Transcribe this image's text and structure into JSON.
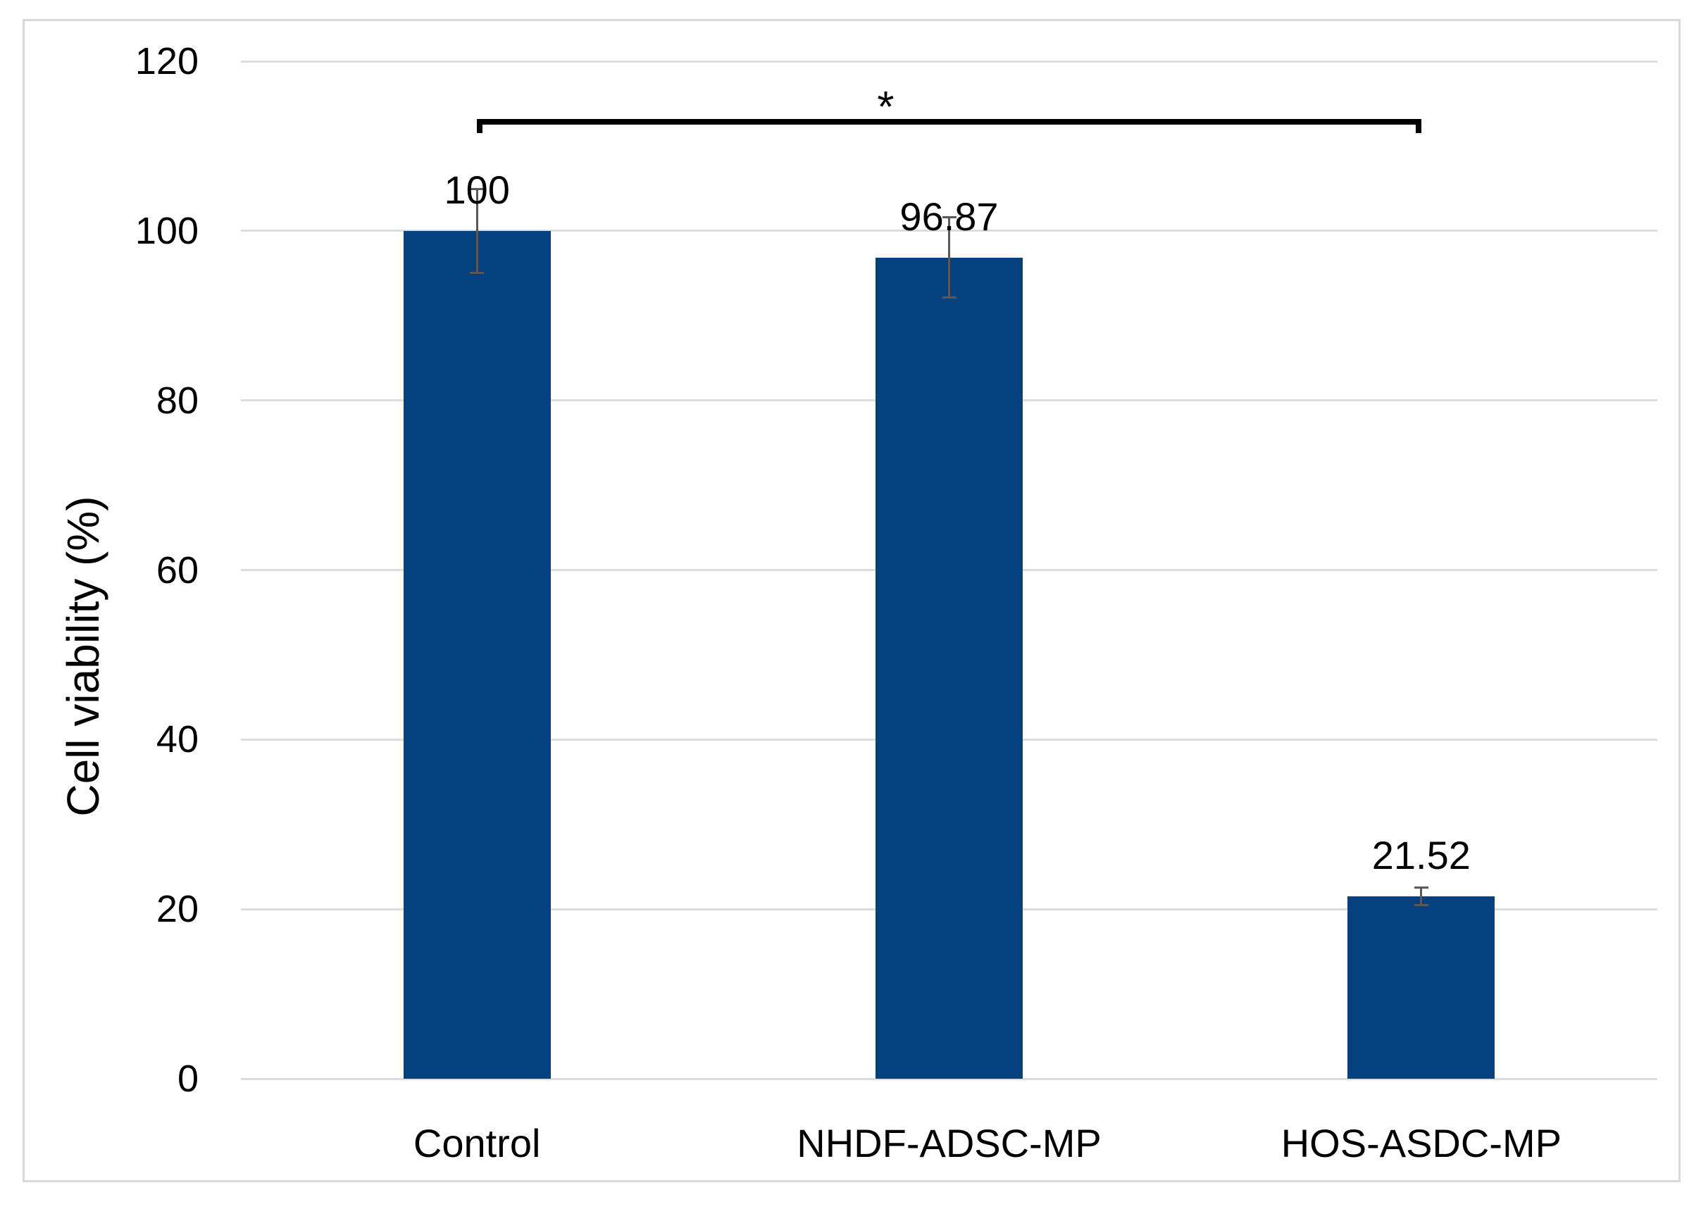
{
  "chart_data": {
    "type": "bar",
    "title": "",
    "xlabel": "",
    "ylabel": "Cell viability (%)",
    "categories": [
      "Control",
      "NHDF-ADSC-MP",
      "HOS-ASDC-MP"
    ],
    "values": [
      100,
      96.87,
      21.52
    ],
    "value_labels": [
      "100",
      "96.87",
      "21.52"
    ],
    "errors": [
      5.0,
      4.8,
      1.1
    ],
    "ylim": [
      0,
      120
    ],
    "yticks": [
      0,
      20,
      40,
      60,
      80,
      100,
      120
    ],
    "grid": true,
    "legend": "none",
    "bar_color": "#05417F",
    "gridline_color": "#dddddd",
    "error_bar_color": "#595959",
    "text_color": "#000000",
    "frame_color": "#d9d9d9",
    "significance": {
      "label": "*",
      "from": "Control",
      "to": "HOS-ASDC-MP"
    }
  }
}
